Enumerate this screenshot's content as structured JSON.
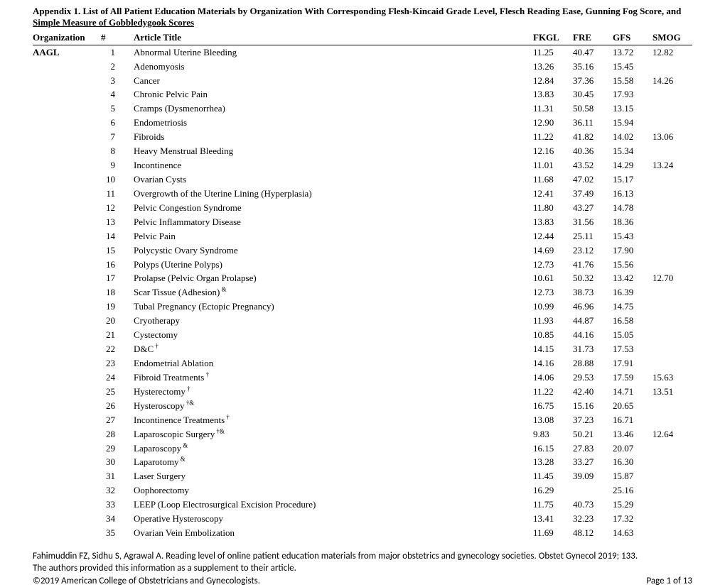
{
  "appendix_title_line1": "Appendix 1. List of All Patient Education Materials by Organization With Corresponding Flesh-Kincaid Grade Level, Flesch Reading Ease, Gunning Fog Score, and",
  "appendix_title_line2": "Simple Measure of Gobbledygook Scores",
  "columns": {
    "org": "Organization",
    "num": "#",
    "title": "Article Title",
    "fkgl": "FKGL",
    "fre": "FRE",
    "gfs": "GFS",
    "smog": "SMOG"
  },
  "organization": "AAGL",
  "rows": [
    {
      "n": "1",
      "title": "Abnormal Uterine Bleeding",
      "fkgl": "11.25",
      "fre": "40.47",
      "gfs": "13.72",
      "smog": "12.82"
    },
    {
      "n": "2",
      "title": "Adenomyosis",
      "fkgl": "13.26",
      "fre": "35.16",
      "gfs": "15.45",
      "smog": ""
    },
    {
      "n": "3",
      "title": "Cancer",
      "fkgl": "12.84",
      "fre": "37.36",
      "gfs": "15.58",
      "smog": "14.26"
    },
    {
      "n": "4",
      "title": "Chronic Pelvic Pain",
      "fkgl": "13.83",
      "fre": "30.45",
      "gfs": "17.93",
      "smog": ""
    },
    {
      "n": "5",
      "title": "Cramps (Dysmenorrhea)",
      "fkgl": "11.31",
      "fre": "50.58",
      "gfs": "13.15",
      "smog": ""
    },
    {
      "n": "6",
      "title": "Endometriosis",
      "fkgl": "12.90",
      "fre": "36.11",
      "gfs": "15.94",
      "smog": ""
    },
    {
      "n": "7",
      "title": "Fibroids",
      "fkgl": "11.22",
      "fre": "41.82",
      "gfs": "14.02",
      "smog": "13.06"
    },
    {
      "n": "8",
      "title": "Heavy Menstrual Bleeding",
      "fkgl": "12.16",
      "fre": "40.36",
      "gfs": "15.34",
      "smog": ""
    },
    {
      "n": "9",
      "title": "Incontinence",
      "fkgl": "11.01",
      "fre": "43.52",
      "gfs": "14.29",
      "smog": "13.24"
    },
    {
      "n": "10",
      "title": "Ovarian Cysts",
      "fkgl": "11.68",
      "fre": "47.02",
      "gfs": "15.17",
      "smog": ""
    },
    {
      "n": "11",
      "title": "Overgrowth of the Uterine Lining (Hyperplasia)",
      "fkgl": "12.41",
      "fre": "37.49",
      "gfs": "16.13",
      "smog": ""
    },
    {
      "n": "12",
      "title": "Pelvic Congestion Syndrome",
      "fkgl": "11.80",
      "fre": "43.27",
      "gfs": "14.78",
      "smog": ""
    },
    {
      "n": "13",
      "title": "Pelvic Inflammatory Disease",
      "fkgl": "13.83",
      "fre": "31.56",
      "gfs": "18.36",
      "smog": ""
    },
    {
      "n": "14",
      "title": "Pelvic Pain",
      "fkgl": "12.44",
      "fre": "25.11",
      "gfs": "15.43",
      "smog": ""
    },
    {
      "n": "15",
      "title": "Polycystic Ovary Syndrome",
      "fkgl": "14.69",
      "fre": "23.12",
      "gfs": "17.90",
      "smog": ""
    },
    {
      "n": "16",
      "title": "Polyps (Uterine Polyps)",
      "fkgl": "12.73",
      "fre": "41.76",
      "gfs": "15.56",
      "smog": ""
    },
    {
      "n": "17",
      "title": "Prolapse (Pelvic Organ Prolapse)",
      "fkgl": "10.61",
      "fre": "50.32",
      "gfs": "13.42",
      "smog": "12.70"
    },
    {
      "n": "18",
      "title": "Scar Tissue (Adhesion)",
      "sup": " &",
      "fkgl": "12.73",
      "fre": "38.73",
      "gfs": "16.39",
      "smog": ""
    },
    {
      "n": "19",
      "title": "Tubal Pregnancy (Ectopic Pregnancy)",
      "fkgl": "10.99",
      "fre": "46.96",
      "gfs": "14.75",
      "smog": ""
    },
    {
      "n": "20",
      "title": "Cryotherapy",
      "fkgl": "11.93",
      "fre": "44.87",
      "gfs": "16.58",
      "smog": ""
    },
    {
      "n": "21",
      "title": "Cystectomy",
      "fkgl": "10.85",
      "fre": "44.16",
      "gfs": "15.05",
      "smog": ""
    },
    {
      "n": "22",
      "title": "D&C",
      "sup": " †",
      "fkgl": "14.15",
      "fre": "31.73",
      "gfs": "17.53",
      "smog": ""
    },
    {
      "n": "23",
      "title": "Endometrial Ablation",
      "fkgl": "14.16",
      "fre": "28.88",
      "gfs": "17.91",
      "smog": ""
    },
    {
      "n": "24",
      "title": "Fibroid Treatments",
      "sup": " †",
      "fkgl": "14.06",
      "fre": "29.53",
      "gfs": "17.59",
      "smog": "15.63"
    },
    {
      "n": "25",
      "title": "Hysterectomy",
      "sup": " †",
      "fkgl": "11.22",
      "fre": "42.40",
      "gfs": "14.71",
      "smog": "13.51"
    },
    {
      "n": "26",
      "title": "Hysteroscopy",
      "sup": " †&",
      "fkgl": "16.75",
      "fre": "15.16",
      "gfs": "20.65",
      "smog": ""
    },
    {
      "n": "27",
      "title": "Incontinence Treatments",
      "sup": " †",
      "fkgl": "13.08",
      "fre": "37.23",
      "gfs": "16.71",
      "smog": ""
    },
    {
      "n": "28",
      "title": "Laparoscopic Surgery",
      "sup": " †&",
      "fkgl": "9.83",
      "fre": "50.21",
      "gfs": "13.46",
      "smog": "12.64"
    },
    {
      "n": "29",
      "title": "Laparoscopy",
      "sup": " &",
      "fkgl": "16.15",
      "fre": "27.83",
      "gfs": "20.07",
      "smog": ""
    },
    {
      "n": "30",
      "title": "Laparotomy",
      "sup": " &",
      "fkgl": "13.28",
      "fre": "33.27",
      "gfs": "16.30",
      "smog": ""
    },
    {
      "n": "31",
      "title": "Laser Surgery",
      "fkgl": "11.45",
      "fre": "39.09",
      "gfs": "15.87",
      "smog": ""
    },
    {
      "n": "32",
      "title": "Oophorectomy",
      "fkgl": "16.29",
      "fre": "",
      "gfs": "25.16",
      "smog": ""
    },
    {
      "n": "33",
      "title": "LEEP (Loop Electrosurgical Excision Procedure)",
      "fkgl": "11.75",
      "fre": "40.73",
      "gfs": "15.29",
      "smog": ""
    },
    {
      "n": "34",
      "title": "Operative Hysteroscopy",
      "fkgl": "13.41",
      "fre": "32.23",
      "gfs": "17.32",
      "smog": ""
    },
    {
      "n": "35",
      "title": "Ovarian Vein Embolization",
      "fkgl": "11.69",
      "fre": "48.12",
      "gfs": "14.63",
      "smog": ""
    }
  ],
  "footer": {
    "citation": "Fahimuddin FZ, Sidhu S, Agrawal A. Reading level of online patient education materials from major obstetrics and gynecology societies. Obstet Gynecol 2019; 133.",
    "supplement": "The authors provided this information as a supplement to their article.",
    "copyright": "©2019 American College of Obstetricians and Gynecologists.",
    "page": "Page 1 of 13"
  }
}
